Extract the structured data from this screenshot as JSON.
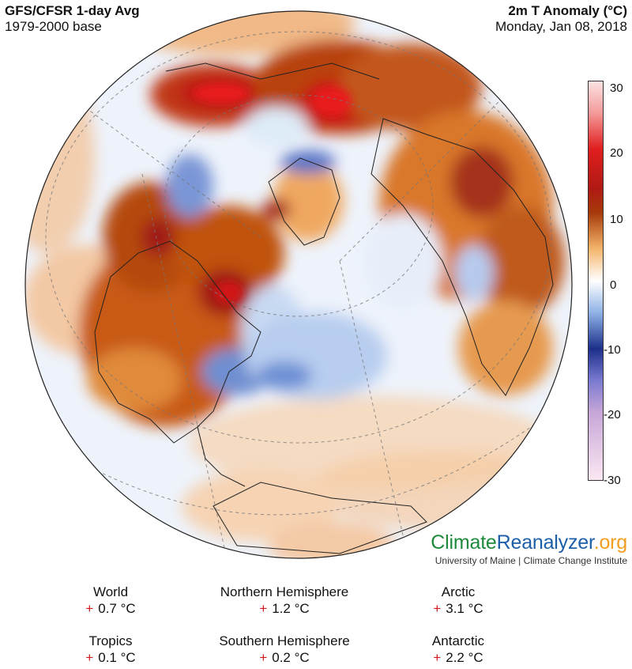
{
  "header": {
    "left_title": "GFS/CFSR 1-day Avg",
    "left_sub": "1979-2000 base",
    "right_title": "2m T Anomaly (°C)",
    "right_sub": "Monday, Jan 08, 2018"
  },
  "colorbar": {
    "ticks": [
      "30",
      "20",
      "10",
      "0",
      "-10",
      "-20",
      "-30"
    ],
    "colors": {
      "-30": "#fbe8f2",
      "-20": "#c8a6d8",
      "-10": "#1c2f8a",
      "-5": "#6f99d8",
      "0": "#ffffff",
      "5": "#f4b46a",
      "10": "#a63a0a",
      "20": "#e01e1e",
      "30": "#fbe3e3"
    }
  },
  "brand": {
    "name_part1": "Climate",
    "name_part2": "Reanalyzer",
    "name_part3": ".org",
    "subtitle": "University of Maine | Climate Change Institute"
  },
  "stats": [
    {
      "name": "World",
      "sign": "+",
      "value": "0.7 °C"
    },
    {
      "name": "Northern Hemisphere",
      "sign": "+",
      "value": "1.2 °C"
    },
    {
      "name": "Arctic",
      "sign": "+",
      "value": "3.1 °C"
    },
    {
      "name": "Tropics",
      "sign": "+",
      "value": "0.1 °C"
    },
    {
      "name": "Southern Hemisphere",
      "sign": "+",
      "value": "0.2 °C"
    },
    {
      "name": "Antarctic",
      "sign": "+",
      "value": "2.2 °C"
    }
  ]
}
